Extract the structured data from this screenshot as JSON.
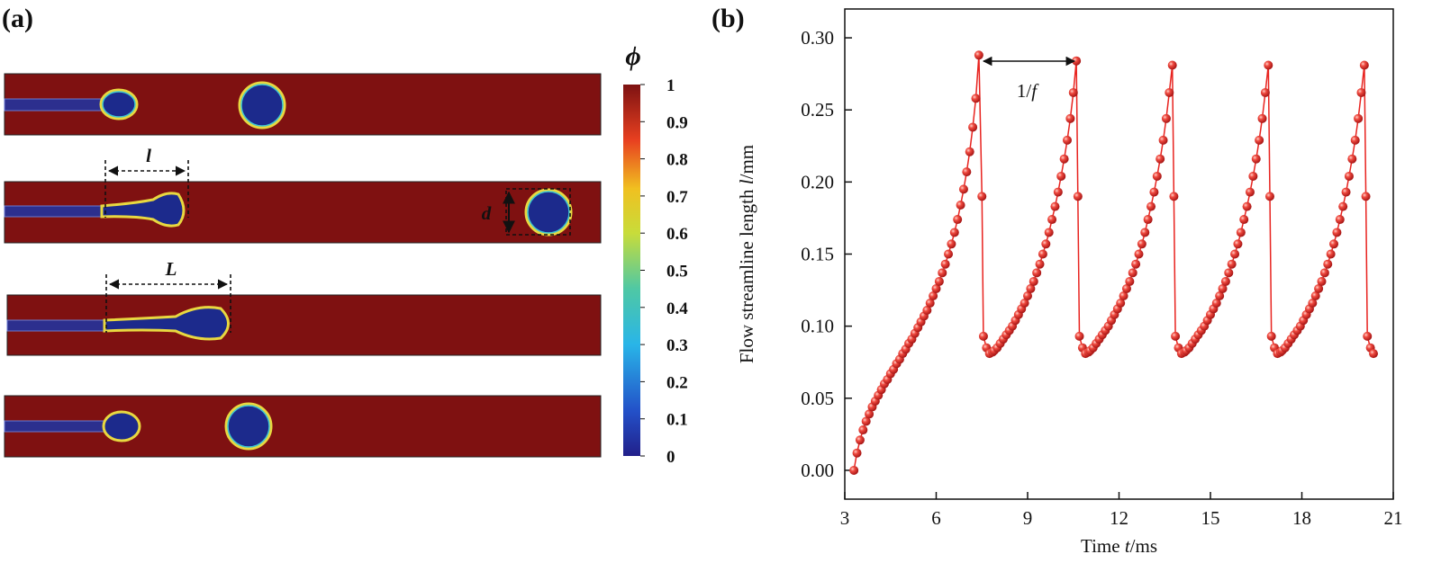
{
  "chart_data": [
    {
      "type": "field",
      "panel_label": "(a)",
      "colorbar": {
        "title": "ϕ",
        "clim": [
          0,
          1
        ],
        "ticks": [
          0,
          0.1,
          0.2,
          0.3,
          0.4,
          0.5,
          0.6,
          0.7,
          0.8,
          0.9,
          1
        ]
      },
      "annotations": [
        "l",
        "d",
        "L"
      ]
    },
    {
      "type": "line",
      "panel_label": "(b)",
      "xlabel": {
        "parts": [
          "Time ",
          "t",
          "/ms"
        ],
        "italic": [
          1
        ]
      },
      "ylabel": {
        "parts": [
          "Flow streamline length  ",
          "l",
          "/mm"
        ],
        "italic": [
          1
        ]
      },
      "annotation": {
        "parts": [
          "1/",
          "f"
        ],
        "italic": [
          1
        ]
      },
      "color": "#e8231f",
      "xlim": [
        3,
        21
      ],
      "xticks": [
        3,
        6,
        9,
        12,
        15,
        18,
        21
      ],
      "ylim": [
        -0.02,
        0.32
      ],
      "yticks": [
        {
          "value": 0,
          "label": "0.00"
        },
        {
          "value": 0.05,
          "label": "0.05"
        },
        {
          "value": 0.1,
          "label": "0.10"
        },
        {
          "value": 0.15,
          "label": "0.15"
        },
        {
          "value": 0.2,
          "label": "0.20"
        },
        {
          "value": 0.25,
          "label": "0.25"
        },
        {
          "value": 0.3,
          "label": "0.30"
        }
      ],
      "x": [
        3.3,
        3.4,
        3.5,
        3.6,
        3.7,
        3.8,
        3.9,
        4.0,
        4.1,
        4.2,
        4.3,
        4.4,
        4.5,
        4.6,
        4.7,
        4.8,
        4.9,
        5.0,
        5.1,
        5.2,
        5.3,
        5.4,
        5.5,
        5.6,
        5.7,
        5.8,
        5.9,
        6.0,
        6.1,
        6.2,
        6.3,
        6.4,
        6.5,
        6.6,
        6.7,
        6.8,
        6.9,
        7.0,
        7.1,
        7.2,
        7.3,
        7.4,
        7.5,
        7.55,
        7.65,
        7.75,
        7.85,
        7.9,
        8.0,
        8.1,
        8.2,
        8.3,
        8.4,
        8.5,
        8.6,
        8.7,
        8.8,
        8.9,
        9.0,
        9.1,
        9.2,
        9.3,
        9.4,
        9.5,
        9.6,
        9.7,
        9.8,
        9.9,
        10.0,
        10.1,
        10.2,
        10.3,
        10.4,
        10.5,
        10.6,
        10.65,
        10.7,
        10.8,
        10.9,
        11.0,
        11.05,
        11.15,
        11.25,
        11.35,
        11.45,
        11.55,
        11.65,
        11.75,
        11.85,
        11.95,
        12.05,
        12.15,
        12.25,
        12.35,
        12.45,
        12.55,
        12.65,
        12.75,
        12.85,
        12.95,
        13.05,
        13.15,
        13.25,
        13.35,
        13.45,
        13.55,
        13.65,
        13.75,
        13.8,
        13.85,
        13.95,
        14.05,
        14.15,
        14.2,
        14.3,
        14.4,
        14.5,
        14.6,
        14.7,
        14.8,
        14.9,
        15.0,
        15.1,
        15.2,
        15.3,
        15.4,
        15.5,
        15.6,
        15.7,
        15.8,
        15.9,
        16.0,
        16.1,
        16.2,
        16.3,
        16.4,
        16.5,
        16.6,
        16.7,
        16.8,
        16.9,
        16.95,
        17.0,
        17.1,
        17.2,
        17.3,
        17.35,
        17.45,
        17.55,
        17.65,
        17.75,
        17.85,
        17.95,
        18.05,
        18.15,
        18.25,
        18.35,
        18.45,
        18.55,
        18.65,
        18.75,
        18.85,
        18.95,
        19.05,
        19.15,
        19.25,
        19.35,
        19.45,
        19.55,
        19.65,
        19.75,
        19.85,
        19.95,
        20.05,
        20.1,
        20.15,
        20.25,
        20.35
      ],
      "values": [
        0,
        0.012,
        0.021,
        0.028,
        0.034,
        0.039,
        0.044,
        0.048,
        0.052,
        0.056,
        0.06,
        0.063,
        0.067,
        0.07,
        0.074,
        0.077,
        0.081,
        0.084,
        0.088,
        0.091,
        0.095,
        0.099,
        0.103,
        0.107,
        0.111,
        0.116,
        0.121,
        0.126,
        0.131,
        0.137,
        0.143,
        0.15,
        0.157,
        0.165,
        0.174,
        0.184,
        0.195,
        0.207,
        0.221,
        0.238,
        0.258,
        0.288,
        0.19,
        0.093,
        0.085,
        0.081,
        0.082,
        0.083,
        0.085,
        0.088,
        0.091,
        0.094,
        0.097,
        0.1,
        0.104,
        0.108,
        0.112,
        0.116,
        0.121,
        0.126,
        0.131,
        0.137,
        0.143,
        0.15,
        0.157,
        0.165,
        0.174,
        0.183,
        0.193,
        0.204,
        0.216,
        0.229,
        0.244,
        0.262,
        0.284,
        0.19,
        0.093,
        0.085,
        0.081,
        0.082,
        0.083,
        0.085,
        0.088,
        0.091,
        0.094,
        0.097,
        0.1,
        0.104,
        0.108,
        0.112,
        0.116,
        0.121,
        0.126,
        0.131,
        0.137,
        0.143,
        0.15,
        0.157,
        0.165,
        0.174,
        0.183,
        0.193,
        0.204,
        0.216,
        0.229,
        0.244,
        0.262,
        0.281,
        0.19,
        0.093,
        0.085,
        0.081,
        0.082,
        0.083,
        0.085,
        0.088,
        0.091,
        0.094,
        0.097,
        0.1,
        0.104,
        0.108,
        0.112,
        0.116,
        0.121,
        0.126,
        0.131,
        0.137,
        0.143,
        0.15,
        0.157,
        0.165,
        0.174,
        0.183,
        0.193,
        0.204,
        0.216,
        0.229,
        0.244,
        0.262,
        0.281,
        0.19,
        0.093,
        0.085,
        0.081,
        0.082,
        0.083,
        0.085,
        0.088,
        0.091,
        0.094,
        0.097,
        0.1,
        0.104,
        0.108,
        0.112,
        0.116,
        0.121,
        0.126,
        0.131,
        0.137,
        0.143,
        0.15,
        0.157,
        0.165,
        0.174,
        0.183,
        0.193,
        0.204,
        0.216,
        0.229,
        0.244,
        0.262,
        0.281,
        0.19,
        0.093,
        0.085,
        0.081
      ]
    }
  ]
}
